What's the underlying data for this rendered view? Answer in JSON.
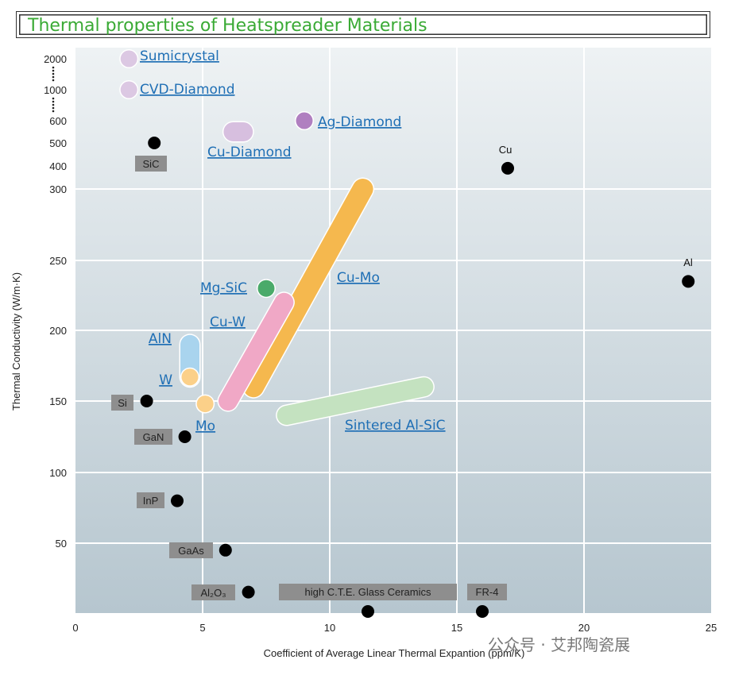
{
  "title": "Thermal properties of Heatspreader Materials",
  "watermark": "公众号 · 艾邦陶瓷展",
  "colors": {
    "title": "#3aaa35",
    "label_link": "#1f6fb5",
    "dot": "#000000",
    "box_fill": "#8e8e8e",
    "plot_bg_top": "#eef2f4",
    "plot_bg_bottom": "#b6c6cf"
  },
  "chart_data": {
    "type": "scatter",
    "title": "Thermal properties of Heatspreader Materials",
    "xlabel": "Coefficient of Average Linear Thermal Expantion (ppm/K)",
    "ylabel": "Thermal Conductivity (W/m·K)",
    "xlim": [
      0,
      25
    ],
    "x_ticks": [
      "0",
      "5",
      "10",
      "15",
      "20",
      "25"
    ],
    "y_ticks": [
      "50",
      "100",
      "150",
      "200",
      "250",
      "300",
      "400",
      "500",
      "600",
      "1000",
      "2000"
    ],
    "y_scale": "broken (linear 0–300 with compressed upper segments)",
    "grid": true,
    "points": [
      {
        "label": "SiC",
        "x": 3.1,
        "y": 500,
        "label_style": "box"
      },
      {
        "label": "Cu",
        "x": 17.0,
        "y": 390,
        "label_style": "plain"
      },
      {
        "label": "Al",
        "x": 24.1,
        "y": 235,
        "label_style": "plain"
      },
      {
        "label": "Si",
        "x": 2.8,
        "y": 150,
        "label_style": "box"
      },
      {
        "label": "GaN",
        "x": 4.3,
        "y": 125,
        "label_style": "box"
      },
      {
        "label": "InP",
        "x": 4.0,
        "y": 80,
        "label_style": "box"
      },
      {
        "label": "GaAs",
        "x": 5.9,
        "y": 45,
        "label_style": "box"
      },
      {
        "label": "Al₂O₃",
        "x": 6.8,
        "y": 15,
        "label_style": "box"
      },
      {
        "label": "high C.T.E. Glass Ceramics",
        "x": 11.5,
        "y": 0,
        "label_style": "box"
      },
      {
        "label": "FR-4",
        "x": 16.0,
        "y": 0,
        "label_style": "box"
      }
    ],
    "materials": [
      {
        "label": "Sumicrystal",
        "shape": "point",
        "x": 2.1,
        "y": 2000,
        "color": "#dcc8e3"
      },
      {
        "label": "CVD-Diamond",
        "shape": "point",
        "x": 2.1,
        "y": 1000,
        "color": "#dcc8e3"
      },
      {
        "label": "Ag-Diamond",
        "shape": "point",
        "x": 9.0,
        "y": 600,
        "color": "#b07fc0"
      },
      {
        "label": "Cu-Diamond",
        "shape": "range",
        "x_range": [
          6.2,
          6.6
        ],
        "y": 550,
        "color": "#d7bfdf"
      },
      {
        "label": "Mg-SiC",
        "shape": "point",
        "x": 7.5,
        "y": 230,
        "color": "#4aaa6a"
      },
      {
        "label": "Cu-Mo",
        "shape": "range",
        "from": [
          7.0,
          160
        ],
        "to": [
          11.3,
          300
        ],
        "color": "#f5b84e"
      },
      {
        "label": "Cu-W",
        "shape": "range",
        "from": [
          6.0,
          150
        ],
        "to": [
          8.2,
          220
        ],
        "color": "#f0a8c6"
      },
      {
        "label": "AlN",
        "shape": "range",
        "from": [
          4.5,
          167
        ],
        "to": [
          4.5,
          190
        ],
        "color": "#a9d4ee"
      },
      {
        "label": "W",
        "shape": "point",
        "x": 4.5,
        "y": 167,
        "color": "#fbd089"
      },
      {
        "label": "Mo",
        "shape": "point",
        "x": 5.1,
        "y": 148,
        "color": "#fbd089"
      },
      {
        "label": "Sintered Al-SiC",
        "shape": "range",
        "from": [
          8.3,
          140
        ],
        "to": [
          13.7,
          160
        ],
        "color": "#c4e2c0"
      }
    ]
  }
}
